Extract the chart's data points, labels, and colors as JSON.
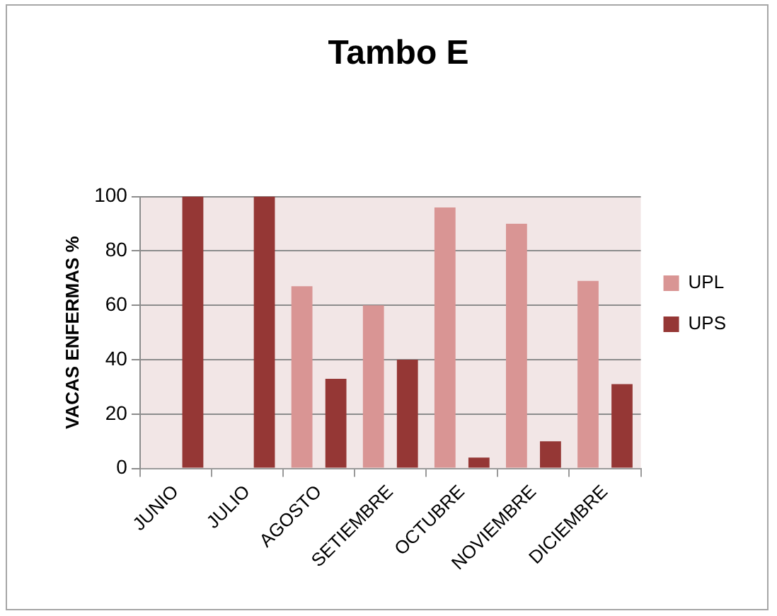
{
  "chart_data": {
    "type": "bar",
    "title": "Tambo E",
    "ylabel": "VACAS ENFERMAS %",
    "categories": [
      "JUNIO",
      "JULIO",
      "AGOSTO",
      "SETIEMBRE",
      "OCTUBRE",
      "NOVIEMBRE",
      "DICIEMBRE"
    ],
    "series": [
      {
        "name": "UPL",
        "color": "#d99594",
        "values": [
          0,
          0,
          67,
          60,
          96,
          90,
          69
        ]
      },
      {
        "name": "UPS",
        "color": "#953735",
        "values": [
          100,
          100,
          33,
          40,
          4,
          10,
          31
        ]
      }
    ],
    "ylim": [
      0,
      100
    ],
    "yticks": [
      0,
      20,
      40,
      60,
      80,
      100
    ],
    "grid": "y",
    "legend": "right"
  }
}
